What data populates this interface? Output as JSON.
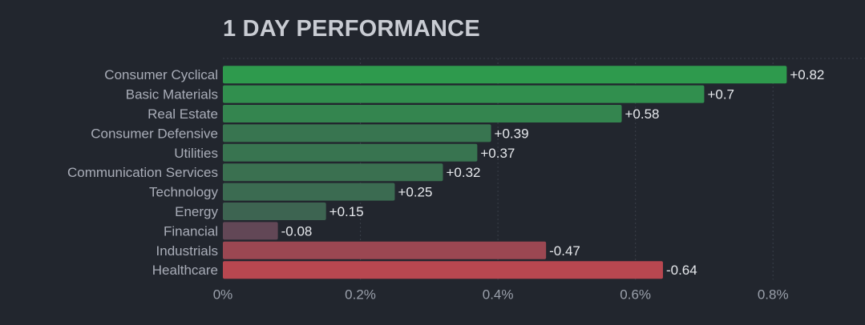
{
  "chart_data": {
    "type": "bar",
    "orientation": "horizontal",
    "title": "1 DAY PERFORMANCE",
    "categories": [
      "Consumer Cyclical",
      "Basic Materials",
      "Real Estate",
      "Consumer Defensive",
      "Utilities",
      "Communication Services",
      "Technology",
      "Energy",
      "Financial",
      "Industrials",
      "Healthcare"
    ],
    "values": [
      0.82,
      0.7,
      0.58,
      0.39,
      0.37,
      0.32,
      0.25,
      0.15,
      -0.08,
      -0.47,
      -0.64
    ],
    "value_labels": [
      "+0.82",
      "+0.7",
      "+0.58",
      "+0.39",
      "+0.37",
      "+0.32",
      "+0.25",
      "+0.15",
      "-0.08",
      "-0.47",
      "-0.64"
    ],
    "bar_magnitude": "absolute",
    "xlim": [
      0,
      0.9
    ],
    "xticks": [
      0,
      0.2,
      0.4,
      0.6,
      0.8
    ],
    "xtick_labels": [
      "0%",
      "0.2%",
      "0.4%",
      "0.6%",
      "0.8%"
    ],
    "grid": true,
    "colors": {
      "positive_strong": "#2e9a4d",
      "positive_weak": "#3f5c52",
      "negative_weak": "#5a4756",
      "negative_strong": "#b84750"
    }
  }
}
